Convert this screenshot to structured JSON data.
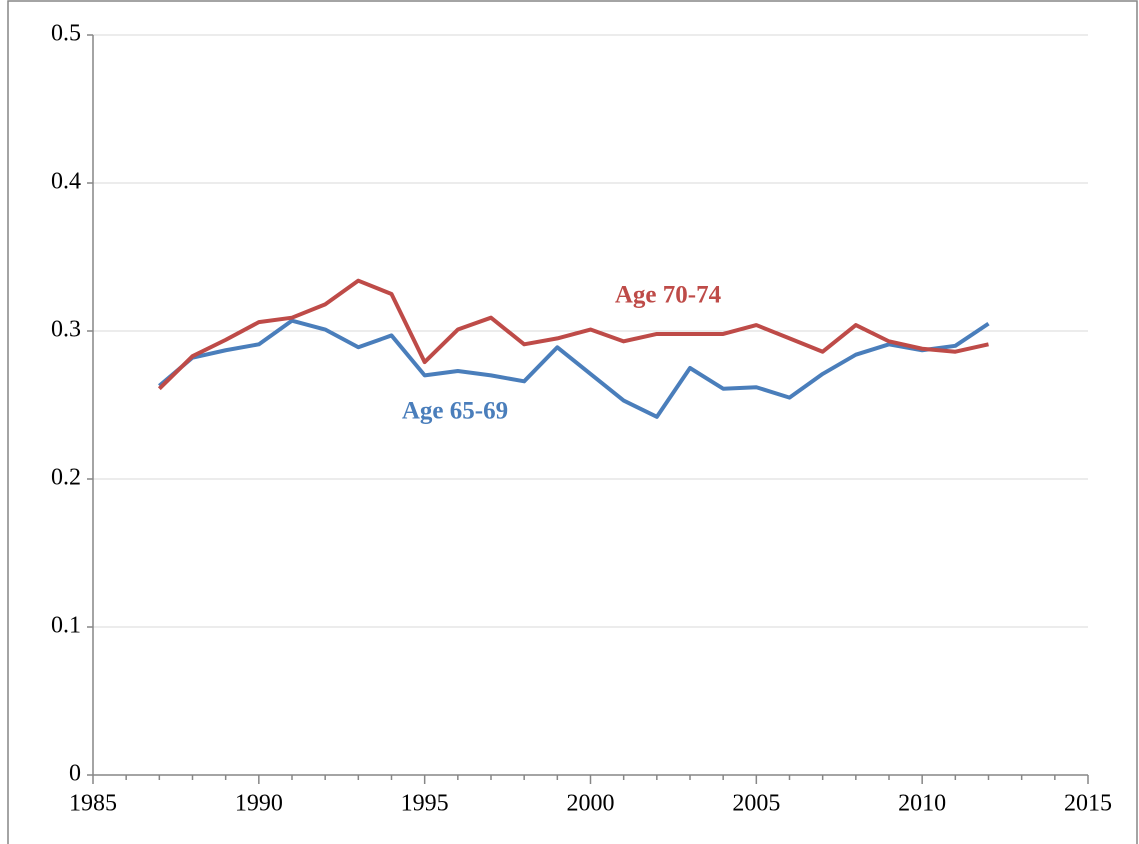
{
  "chart_data": {
    "type": "line",
    "x": [
      1987,
      1988,
      1989,
      1990,
      1991,
      1992,
      1993,
      1994,
      1995,
      1996,
      1997,
      1998,
      1999,
      2000,
      2001,
      2002,
      2003,
      2004,
      2005,
      2006,
      2007,
      2008,
      2009,
      2010,
      2011,
      2012
    ],
    "series": [
      {
        "name": "Age 65-69",
        "color": "#4a7ebb",
        "values": [
          0.263,
          0.282,
          0.287,
          0.291,
          0.307,
          0.301,
          0.289,
          0.297,
          0.27,
          0.273,
          0.27,
          0.266,
          0.289,
          0.271,
          0.253,
          0.242,
          0.275,
          0.261,
          0.262,
          0.255,
          0.271,
          0.284,
          0.291,
          0.287,
          0.29,
          0.305
        ]
      },
      {
        "name": "Age 70-74",
        "color": "#be4b48",
        "values": [
          0.261,
          0.283,
          0.294,
          0.306,
          0.309,
          0.318,
          0.334,
          0.325,
          0.279,
          0.301,
          0.309,
          0.291,
          0.295,
          0.301,
          0.293,
          0.298,
          0.298,
          0.298,
          0.304,
          0.295,
          0.286,
          0.304,
          0.293,
          0.288,
          0.286,
          0.291
        ]
      }
    ],
    "xlim": [
      1985,
      2015
    ],
    "xticks": [
      1985,
      1990,
      1995,
      2000,
      2005,
      2010,
      2015
    ],
    "xminorticks": [
      1986,
      1987,
      1988,
      1989,
      1991,
      1992,
      1993,
      1994,
      1996,
      1997,
      1998,
      1999,
      2001,
      2002,
      2003,
      2004,
      2006,
      2007,
      2008,
      2009,
      2011,
      2012,
      2013,
      2014
    ],
    "ylim": [
      0,
      0.5
    ],
    "yticks": [
      0,
      0.1,
      0.2,
      0.3,
      0.4,
      0.5
    ],
    "grid": true
  }
}
